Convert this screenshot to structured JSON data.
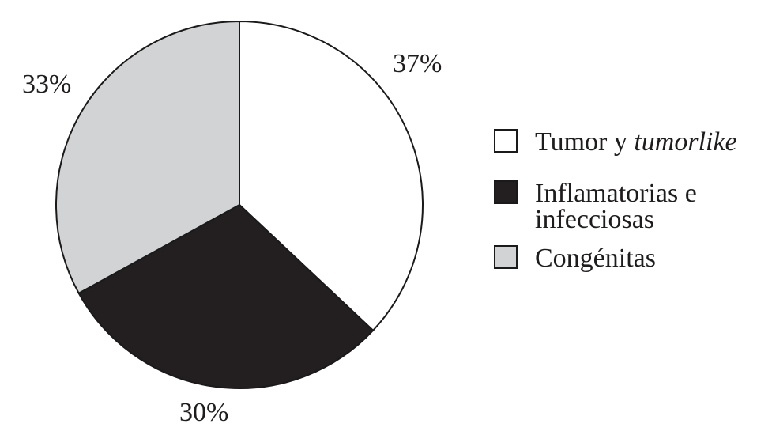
{
  "figure": {
    "background": "#ffffff",
    "text_color": "#1f1c1d"
  },
  "chart_data": {
    "type": "pie",
    "title": "",
    "slices": [
      {
        "label": "Tumor y tumorlike",
        "value": 37,
        "pct_label": "37%",
        "color": "#ffffff"
      },
      {
        "label": "Inflamatorias e infecciosas",
        "value": 30,
        "pct_label": "30%",
        "color": "#231f20"
      },
      {
        "label": "Congénitas",
        "value": 33,
        "pct_label": "33%",
        "color": "#d2d3d5"
      }
    ],
    "start_angle_deg": 0,
    "direction": "clockwise",
    "outline_color": "#1a1a1a",
    "legend_position": "right",
    "labels_outside": true
  },
  "legend": {
    "items": [
      {
        "text": "Tumor y ",
        "italic": "tumorlike"
      },
      {
        "text": "Inflamatorias e infecciosas",
        "italic": ""
      },
      {
        "text": "Congénitas",
        "italic": ""
      }
    ]
  }
}
